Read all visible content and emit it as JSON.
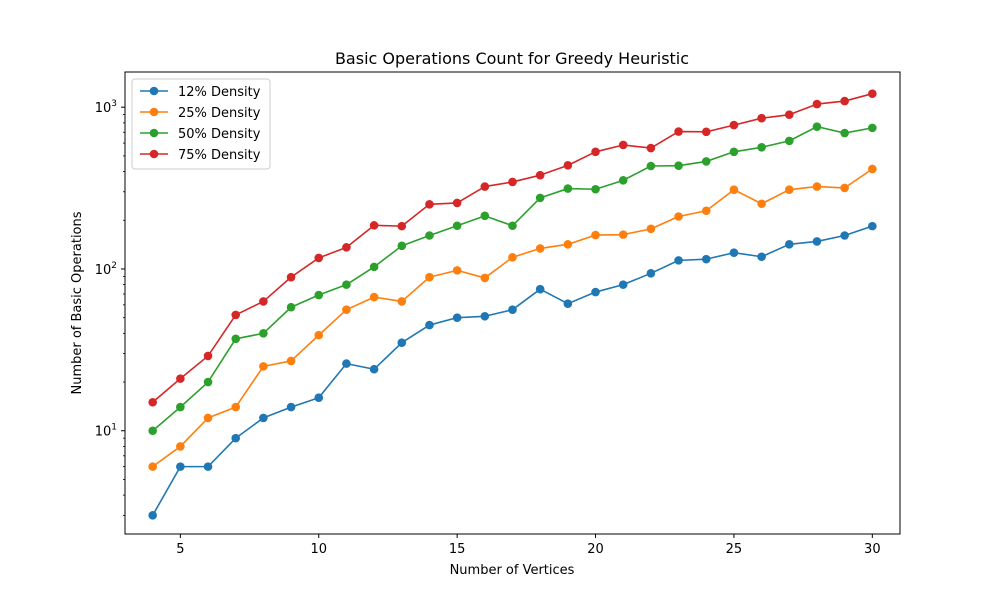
{
  "chart_data": {
    "type": "line",
    "title": "Basic Operations Count for Greedy Heuristic",
    "xlabel": "Number of Vertices",
    "ylabel": "Number of Basic Operations",
    "yscale": "log",
    "xlim": [
      3.0,
      31.0
    ],
    "ylim": [
      2.3,
      1650
    ],
    "grid": false,
    "legend_position": "top-left",
    "x_ticks": [
      5,
      10,
      15,
      20,
      25,
      30
    ],
    "y_ticks": [
      {
        "value": 10,
        "base": "10",
        "exp": "1"
      },
      {
        "value": 100,
        "base": "10",
        "exp": "2"
      },
      {
        "value": 1000,
        "base": "10",
        "exp": "3"
      }
    ],
    "x": [
      4,
      5,
      6,
      7,
      8,
      9,
      10,
      11,
      12,
      13,
      14,
      15,
      16,
      17,
      18,
      19,
      20,
      21,
      22,
      23,
      24,
      25,
      26,
      27,
      28,
      29,
      30
    ],
    "series": [
      {
        "name": "12% Density",
        "color": "#1f77b4",
        "values": [
          3,
          6,
          6,
          9,
          12,
          14,
          16,
          26,
          24,
          35,
          45,
          50,
          51,
          56,
          75,
          61,
          72,
          80,
          94,
          113,
          115,
          126,
          119,
          142,
          148,
          161,
          184
        ]
      },
      {
        "name": "25% Density",
        "color": "#ff7f0e",
        "values": [
          6,
          8,
          12,
          14,
          25,
          27,
          39,
          56,
          67,
          63,
          89,
          98,
          88,
          118,
          134,
          142,
          162,
          163,
          177,
          211,
          229,
          309,
          253,
          309,
          323,
          317,
          415
        ]
      },
      {
        "name": "50% Density",
        "color": "#2ca02c",
        "values": [
          10,
          14,
          20,
          37,
          40,
          58,
          69,
          80,
          103,
          139,
          161,
          185,
          213,
          185,
          275,
          314,
          311,
          353,
          433,
          435,
          462,
          530,
          565,
          619,
          758,
          692,
          745
        ]
      },
      {
        "name": "75% Density",
        "color": "#d62728",
        "values": [
          15,
          21,
          29,
          52,
          63,
          89,
          117,
          136,
          186,
          184,
          251,
          256,
          323,
          345,
          380,
          437,
          530,
          584,
          559,
          707,
          704,
          775,
          855,
          899,
          1045,
          1091,
          1212
        ]
      }
    ]
  }
}
